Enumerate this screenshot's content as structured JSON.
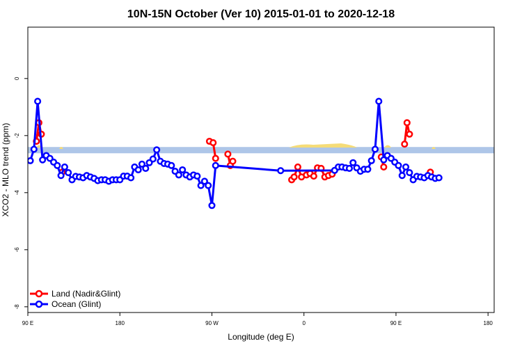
{
  "chart_data": {
    "type": "line",
    "title": "10N-15N October (Ver 10)   2015-01-01 to 2020-12-18",
    "xlabel": "Longitude (deg E)",
    "ylabel": "XCO2 - MLO trend (ppm)",
    "xlim": [
      90,
      470
    ],
    "ylim": [
      -8.2,
      1.8
    ],
    "x_ticks": [
      {
        "value": 90,
        "label": "90 E"
      },
      {
        "value": 165,
        "label": "180"
      },
      {
        "value": 240,
        "label": "90 W"
      },
      {
        "value": 315,
        "label": "0"
      },
      {
        "value": 390,
        "label": "90 E"
      },
      {
        "value": 465,
        "label": "180"
      }
    ],
    "y_ticks": [
      {
        "value": 0,
        "label": "0"
      },
      {
        "value": -2,
        "label": "-2"
      },
      {
        "value": -4,
        "label": "-4"
      },
      {
        "value": -6,
        "label": "-6"
      },
      {
        "value": -8,
        "label": "-8"
      }
    ],
    "legend": {
      "position": "bottom-left"
    },
    "colors": {
      "land": "#ff0000",
      "ocean": "#0000ff",
      "band": "#aec6e8",
      "land_mask": "#f5dc78"
    },
    "series": [
      {
        "name": "Land (Nadir&Glint)",
        "color": "#ff0000",
        "segments": [
          [
            [
              97,
              -2.2
            ],
            [
              99,
              -1.55
            ],
            [
              101,
              -1.95
            ]
          ],
          [
            [
              118,
              -3.28
            ]
          ],
          [
            [
              238,
              -2.2
            ],
            [
              241,
              -2.25
            ],
            [
              243,
              -2.8
            ]
          ],
          [
            [
              253,
              -2.65
            ],
            [
              255,
              -3.05
            ],
            [
              257,
              -2.9
            ]
          ],
          [
            [
              305,
              -3.55
            ],
            [
              307,
              -3.45
            ],
            [
              310,
              -3.1
            ],
            [
              313,
              -3.45
            ],
            [
              317,
              -3.38
            ],
            [
              320,
              -3.33
            ],
            [
              323,
              -3.42
            ],
            [
              326,
              -3.13
            ],
            [
              329,
              -3.15
            ],
            [
              332,
              -3.45
            ],
            [
              335,
              -3.4
            ],
            [
              338,
              -3.35
            ]
          ],
          [
            [
              378,
              -2.75
            ],
            [
              380,
              -3.1
            ]
          ],
          [
            [
              397,
              -2.3
            ],
            [
              399,
              -1.55
            ],
            [
              401,
              -1.95
            ]
          ],
          [
            [
              418,
              -3.28
            ]
          ]
        ]
      },
      {
        "name": "Ocean (Glint)",
        "color": "#0000ff",
        "points": [
          [
            92,
            -2.88
          ],
          [
            95,
            -2.48
          ],
          [
            98,
            -0.8
          ],
          [
            102,
            -2.85
          ],
          [
            105,
            -2.7
          ],
          [
            108,
            -2.8
          ],
          [
            111,
            -2.93
          ],
          [
            114,
            -3.05
          ],
          [
            117,
            -3.4
          ],
          [
            120,
            -3.1
          ],
          [
            123,
            -3.3
          ],
          [
            126,
            -3.55
          ],
          [
            129,
            -3.43
          ],
          [
            132,
            -3.45
          ],
          [
            135,
            -3.48
          ],
          [
            138,
            -3.4
          ],
          [
            141,
            -3.45
          ],
          [
            144,
            -3.5
          ],
          [
            147,
            -3.58
          ],
          [
            150,
            -3.55
          ],
          [
            153,
            -3.55
          ],
          [
            156,
            -3.6
          ],
          [
            159,
            -3.55
          ],
          [
            162,
            -3.55
          ],
          [
            165,
            -3.55
          ],
          [
            168,
            -3.42
          ],
          [
            171,
            -3.42
          ],
          [
            174,
            -3.48
          ],
          [
            177,
            -3.1
          ],
          [
            180,
            -3.2
          ],
          [
            183,
            -3.0
          ],
          [
            186,
            -3.15
          ],
          [
            189,
            -2.95
          ],
          [
            192,
            -2.82
          ],
          [
            195,
            -2.5
          ],
          [
            198,
            -2.9
          ],
          [
            201,
            -2.98
          ],
          [
            204,
            -3.0
          ],
          [
            207,
            -3.05
          ],
          [
            210,
            -3.25
          ],
          [
            213,
            -3.38
          ],
          [
            216,
            -3.2
          ],
          [
            219,
            -3.38
          ],
          [
            222,
            -3.45
          ],
          [
            225,
            -3.38
          ],
          [
            228,
            -3.42
          ],
          [
            231,
            -3.75
          ],
          [
            234,
            -3.6
          ],
          [
            237,
            -3.75
          ],
          [
            240,
            -4.45
          ],
          [
            243,
            -3.05
          ],
          [
            296,
            -3.23
          ],
          [
            340,
            -3.22
          ],
          [
            343,
            -3.1
          ],
          [
            346,
            -3.1
          ],
          [
            349,
            -3.13
          ],
          [
            352,
            -3.15
          ],
          [
            355,
            -2.95
          ],
          [
            358,
            -3.13
          ],
          [
            361,
            -3.25
          ],
          [
            364,
            -3.18
          ],
          [
            367,
            -3.18
          ],
          [
            370,
            -2.88
          ],
          [
            373,
            -2.48
          ],
          [
            376,
            -0.8
          ],
          [
            380,
            -2.85
          ],
          [
            383,
            -2.7
          ],
          [
            386,
            -2.8
          ],
          [
            389,
            -2.93
          ],
          [
            392,
            -3.05
          ],
          [
            395,
            -3.4
          ],
          [
            398,
            -3.1
          ],
          [
            401,
            -3.3
          ],
          [
            404,
            -3.55
          ],
          [
            407,
            -3.43
          ],
          [
            410,
            -3.45
          ],
          [
            413,
            -3.48
          ],
          [
            416,
            -3.4
          ],
          [
            419,
            -3.45
          ],
          [
            422,
            -3.5
          ],
          [
            425,
            -3.48
          ]
        ]
      }
    ]
  }
}
